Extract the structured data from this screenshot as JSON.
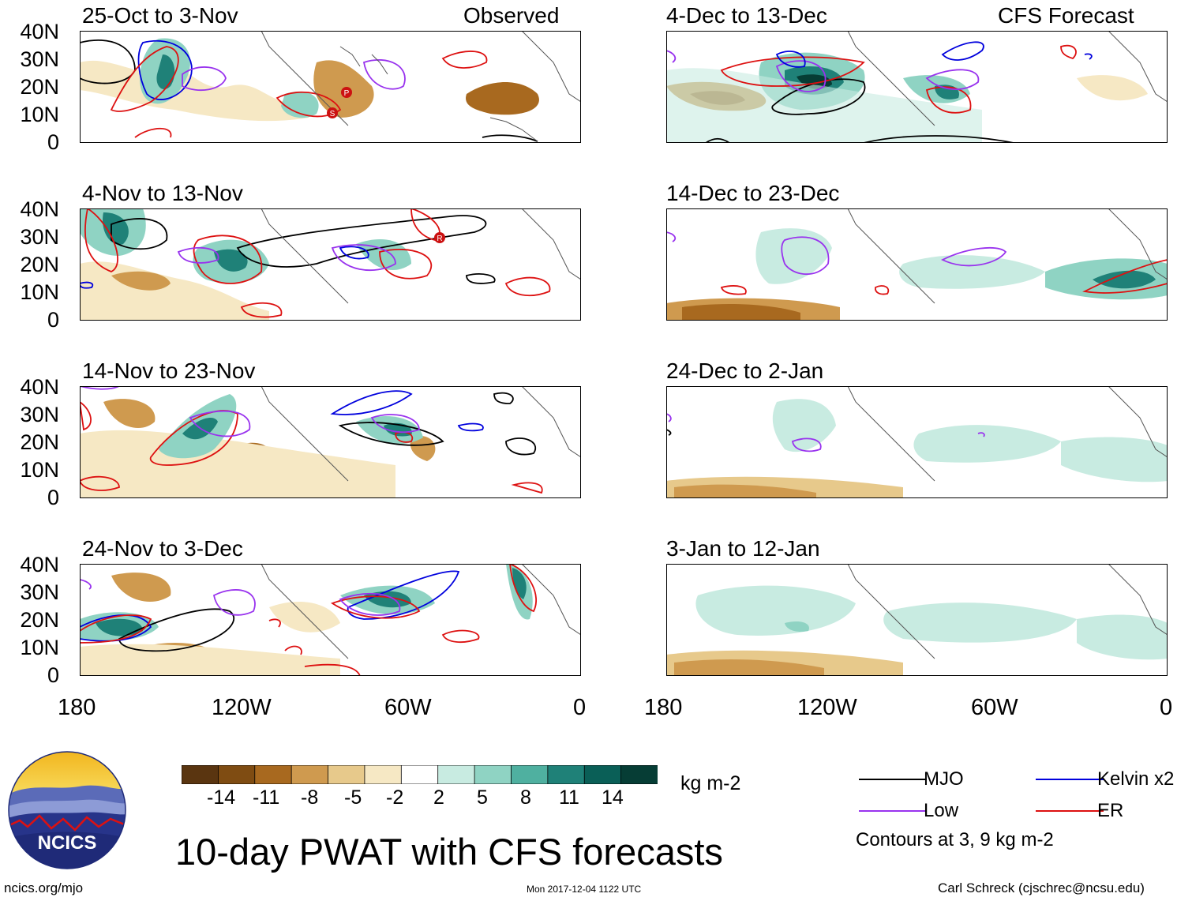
{
  "header": {
    "observed_label": "Observed",
    "forecast_label": "CFS Forecast"
  },
  "panels_left": [
    {
      "title": "25-Oct to 3-Nov"
    },
    {
      "title": "4-Nov to 13-Nov"
    },
    {
      "title": "14-Nov to 23-Nov"
    },
    {
      "title": "24-Nov to 3-Dec"
    }
  ],
  "panels_right": [
    {
      "title": "4-Dec to 13-Dec"
    },
    {
      "title": "14-Dec to 23-Dec"
    },
    {
      "title": "24-Dec to 2-Jan"
    },
    {
      "title": "3-Jan to 12-Jan"
    }
  ],
  "axes": {
    "lat_labels": [
      "40N",
      "30N",
      "20N",
      "10N",
      "0"
    ],
    "lon_labels": [
      "180",
      "120W",
      "60W",
      "0"
    ]
  },
  "storm_markers": [
    "P",
    "S",
    "R"
  ],
  "colorbar": {
    "ticks": [
      "-14",
      "-11",
      "-8",
      "-5",
      "-2",
      "2",
      "5",
      "8",
      "11",
      "14"
    ],
    "units": "kg m-2",
    "colors": [
      "#5a3510",
      "#7f4c12",
      "#a8691f",
      "#cf9a4f",
      "#e7c98b",
      "#f6e8c4",
      "#ffffff",
      "#c8ebe1",
      "#8fd3c3",
      "#4fb0a0",
      "#1f8178",
      "#0a5f57",
      "#063d35"
    ]
  },
  "legend": {
    "mjo": "MJO",
    "kelvin": "Kelvin x2",
    "low": "Low",
    "er": "ER",
    "contours_note": "Contours at 3, 9 kg m-2",
    "colors": {
      "mjo": "#000000",
      "kelvin": "#0000dd",
      "low": "#9933ee",
      "er": "#dd1111"
    }
  },
  "footer": {
    "main_title": "10-day PWAT with CFS forecasts",
    "url": "ncics.org/mjo",
    "timestamp": "Mon 2017-12-04 1122 UTC",
    "credit": "Carl Schreck (cjschrec@ncsu.edu)",
    "logo_text": "NCICS"
  }
}
